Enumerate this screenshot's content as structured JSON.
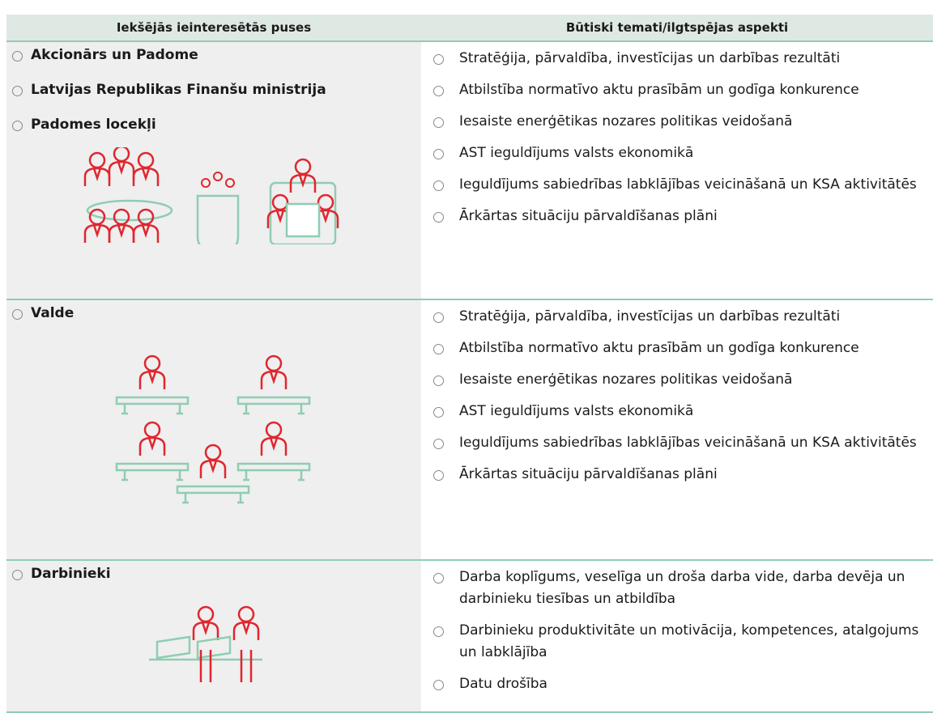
{
  "header": {
    "col1": "Iekšējās ieinteresētās puses",
    "col2": "Būtiski temati/ilgtspējas aspekti"
  },
  "rows": [
    {
      "stakeholders": [
        "Akcionārs un Padome",
        "Latvijas Republikas Finanšu ministrija",
        "Padomes locekļi"
      ],
      "topics": [
        "Stratēģija, pārvaldība, investīcijas un darbības rezultāti",
        "Atbilstība normatīvo aktu prasībām un godīga konkurence",
        "Iesaiste enerģētikas nozares politikas veidošanā",
        "AST ieguldījums valsts ekonomikā",
        "Ieguldījums sabiedrības labklājības veicināšanā un KSA aktivitātēs",
        "Ārkārtas situāciju pārvaldīšanas plāni"
      ]
    },
    {
      "stakeholders": [
        "Valde"
      ],
      "topics": [
        "Stratēģija, pārvaldība, investīcijas un darbības rezultāti",
        "Atbilstība normatīvo aktu prasībām un godīga konkurence",
        "Iesaiste enerģētikas nozares politikas veidošanā",
        "AST ieguldījums valsts ekonomikā",
        "Ieguldījums sabiedrības labklājības veicināšanā un KSA aktivitātēs",
        "Ārkārtas situāciju pārvaldīšanas plāni"
      ]
    },
    {
      "stakeholders": [
        "Darbinieki"
      ],
      "topics": [
        "Darba koplīgums, veselīga un droša darba vide, darba devēja un darbinieku tiesības un atbildība",
        "Darbinieku produktivitāte un motivācija, kompetences, atalgojums un labklājība",
        "Datu drošība"
      ]
    }
  ]
}
